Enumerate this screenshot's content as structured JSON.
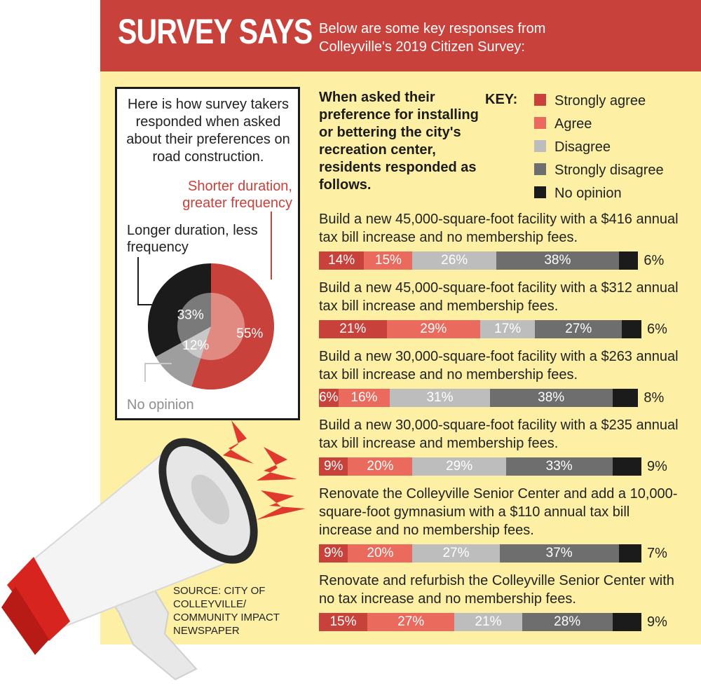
{
  "header": {
    "title": "SURVEY SAYS",
    "subtitle": "Below are some key responses from Colleyville's 2019 Citizen Survey:"
  },
  "pie": {
    "intro": "Here is how survey takers responded when asked about their preferences on road construction.",
    "slices": [
      {
        "label": "Shorter duration, greater frequency",
        "value": 55,
        "display": "55%",
        "color": "#c8413a",
        "inner_color": "#e08a82"
      },
      {
        "label": "No opinion",
        "value": 12,
        "display": "12%",
        "color": "#9e9e9e",
        "inner_color": "#c8c8c8"
      },
      {
        "label": "Longer duration, less frequency",
        "value": 33,
        "display": "33%",
        "color": "#1b1b1b",
        "inner_color": "#7a7a7a"
      }
    ]
  },
  "question_intro": "When asked their preference for installing or bettering the city's recreation center, residents responded as follows.",
  "key": {
    "title": "KEY:",
    "items": [
      {
        "label": "Strongly agree",
        "color": "#c8413a"
      },
      {
        "label": "Agree",
        "color": "#ea6b5d"
      },
      {
        "label": "Disagree",
        "color": "#bdbdbd"
      },
      {
        "label": "Strongly disagree",
        "color": "#6e6e6e"
      },
      {
        "label": "No opinion",
        "color": "#1b1b1b"
      }
    ]
  },
  "chart_data": {
    "type": "bar",
    "stacked": true,
    "orientation": "horizontal",
    "title": "When asked their preference for installing or bettering the city's recreation center, residents responded as follows.",
    "legend": [
      "Strongly agree",
      "Agree",
      "Disagree",
      "Strongly disagree",
      "No opinion"
    ],
    "legend_placement": "top-right",
    "categories": [
      "Build a new 45,000-square-foot facility with a $416 annual tax bill increase and no membership fees.",
      "Build a new 45,000-square-foot facility with a $312 annual tax bill increase and membership fees.",
      "Build a new 30,000-square-foot facility with a $263 annual tax bill increase and no membership fees.",
      "Build a new 30,000-square-foot facility with a $235 annual tax bill increase and membership fees.",
      "Renovate the Colleyville Senior Center and add a 10,000-square-foot gymnasium with a $110 annual tax bill increase and no membership fees.",
      "Renovate and refurbish the Colleyville Senior Center with no tax increase and no membership fees."
    ],
    "series": [
      {
        "name": "Strongly agree",
        "values": [
          14,
          21,
          6,
          9,
          9,
          15
        ]
      },
      {
        "name": "Agree",
        "values": [
          15,
          29,
          16,
          20,
          20,
          27
        ]
      },
      {
        "name": "Disagree",
        "values": [
          26,
          17,
          31,
          29,
          27,
          21
        ]
      },
      {
        "name": "Strongly disagree",
        "values": [
          38,
          27,
          38,
          33,
          37,
          28
        ]
      },
      {
        "name": "No opinion",
        "values": [
          6,
          6,
          8,
          9,
          7,
          9
        ]
      }
    ],
    "value_suffix": "%"
  },
  "source": "SOURCE: CITY OF COLLEYVILLE/ COMMUNITY IMPACT NEWSPAPER"
}
